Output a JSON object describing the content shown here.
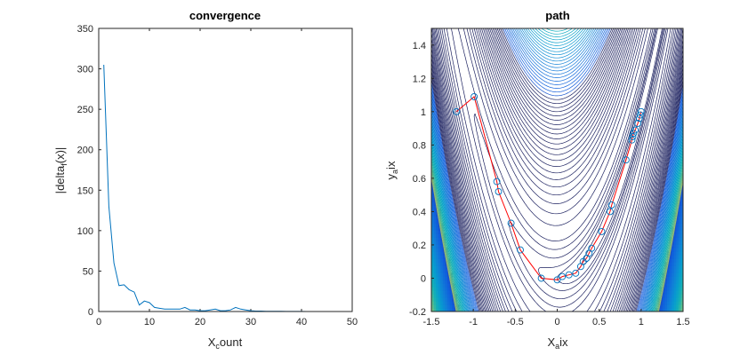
{
  "chart_data": [
    {
      "type": "line",
      "title": "convergence",
      "xlabel": "X_count",
      "ylabel": "|delta_f(x)|",
      "xlim": [
        0,
        50
      ],
      "ylim": [
        0,
        350
      ],
      "xticks": [
        0,
        10,
        20,
        30,
        40,
        50
      ],
      "yticks": [
        0,
        50,
        100,
        150,
        200,
        250,
        300,
        350
      ],
      "grid": false,
      "series": [
        {
          "color": "#0072BD",
          "x": [
            1,
            2,
            3,
            4,
            5,
            6,
            7,
            8,
            9,
            10,
            11,
            12,
            13,
            14,
            15,
            16,
            17,
            18,
            19,
            20,
            21,
            22,
            23,
            24,
            25,
            26,
            27,
            28,
            29,
            30,
            31,
            32,
            33,
            34,
            35,
            36,
            37,
            38,
            39,
            40,
            41,
            42,
            43,
            44,
            45,
            46,
            47,
            48
          ],
          "y": [
            305,
            130,
            60,
            32,
            33,
            27,
            24,
            8,
            13,
            11,
            5,
            4,
            3,
            3,
            3,
            3,
            5,
            2,
            2,
            1,
            1,
            2,
            3,
            1,
            1,
            2,
            5,
            3,
            2,
            1,
            0.5,
            0.5,
            0.3,
            0.3,
            0.2,
            0.2,
            0.1,
            0.1,
            0.1,
            0.1,
            0.05,
            0.05,
            0.05,
            0.05,
            0.05,
            0.02,
            0.02,
            0.02
          ]
        }
      ]
    },
    {
      "type": "contour",
      "title": "path",
      "xlabel": "X_aix",
      "ylabel": "y_aix",
      "xlim": [
        -1.5,
        1.5
      ],
      "ylim": [
        -0.2,
        1.5
      ],
      "xticks": [
        -1.5,
        -1,
        -0.5,
        0,
        0.5,
        1,
        1.5
      ],
      "yticks": [
        -0.2,
        0,
        0.2,
        0.4,
        0.6,
        0.8,
        1,
        1.2,
        1.4
      ],
      "surface": "Rosenbrock function (1-x)^2 + 100(y-x^2)^2",
      "colormap": "parula",
      "path_color": "#ff0000",
      "marker_color": "#0072BD",
      "path": {
        "x": [
          -1.2,
          -0.99,
          -0.72,
          -0.7,
          -0.55,
          -0.44,
          -0.19,
          0.0,
          0.06,
          0.14,
          0.22,
          0.28,
          0.31,
          0.35,
          0.38,
          0.41,
          0.53,
          0.63,
          0.65,
          0.82,
          0.89,
          0.9,
          0.91,
          0.93,
          0.96,
          0.98,
          0.99,
          1.0
        ],
        "y": [
          1.0,
          1.09,
          0.58,
          0.52,
          0.33,
          0.17,
          0.0,
          -0.01,
          0.01,
          0.02,
          0.03,
          0.07,
          0.1,
          0.12,
          0.15,
          0.18,
          0.28,
          0.4,
          0.44,
          0.71,
          0.83,
          0.85,
          0.87,
          0.89,
          0.93,
          0.96,
          0.98,
          1.0
        ]
      }
    }
  ]
}
